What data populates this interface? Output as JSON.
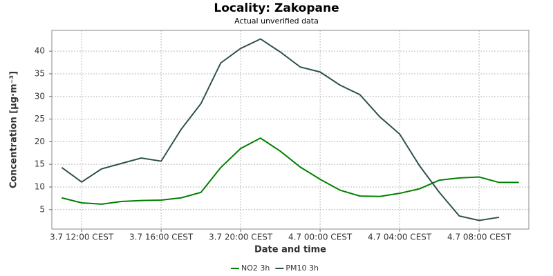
{
  "chart_data": {
    "type": "line",
    "title": "Locality: Zakopane",
    "subtitle": "Actual unverified data",
    "x_label": "Date and time",
    "y_label": "Concentration [µg·m⁻³]",
    "categories": [
      null,
      "3.7 12:00 CEST",
      null,
      null,
      null,
      "3.7 16:00 CEST",
      null,
      null,
      null,
      "3.7 20:00 CEST",
      null,
      null,
      null,
      "4.7 00:00 CEST",
      null,
      null,
      null,
      "4.7 04:00 CEST",
      null,
      null,
      null,
      "4.7 08:00 CEST",
      null,
      null
    ],
    "series": [
      {
        "name": "NO2 3h",
        "color": "#008000",
        "values": [
          7.6,
          6.5,
          6.2,
          6.8,
          7.0,
          7.1,
          7.6,
          8.8,
          14.3,
          18.5,
          20.8,
          17.9,
          14.4,
          11.7,
          9.3,
          8.0,
          7.9,
          8.6,
          9.6,
          11.5,
          12.0,
          12.2,
          11.0,
          11.0
        ]
      },
      {
        "name": "PM10 3h",
        "color": "#2f4f4f",
        "values": [
          14.3,
          11.1,
          14.0,
          15.2,
          16.4,
          15.7,
          22.7,
          28.4,
          37.4,
          40.6,
          42.7,
          39.8,
          36.5,
          35.4,
          32.5,
          30.4,
          25.5,
          21.7,
          14.7,
          8.8,
          3.6,
          2.6,
          3.3,
          null
        ]
      }
    ],
    "ylim": [
      0.7,
      44.6
    ],
    "yticks": [
      5,
      10,
      15,
      20,
      25,
      30,
      35,
      40
    ],
    "grid": true,
    "legend": "bottom"
  }
}
